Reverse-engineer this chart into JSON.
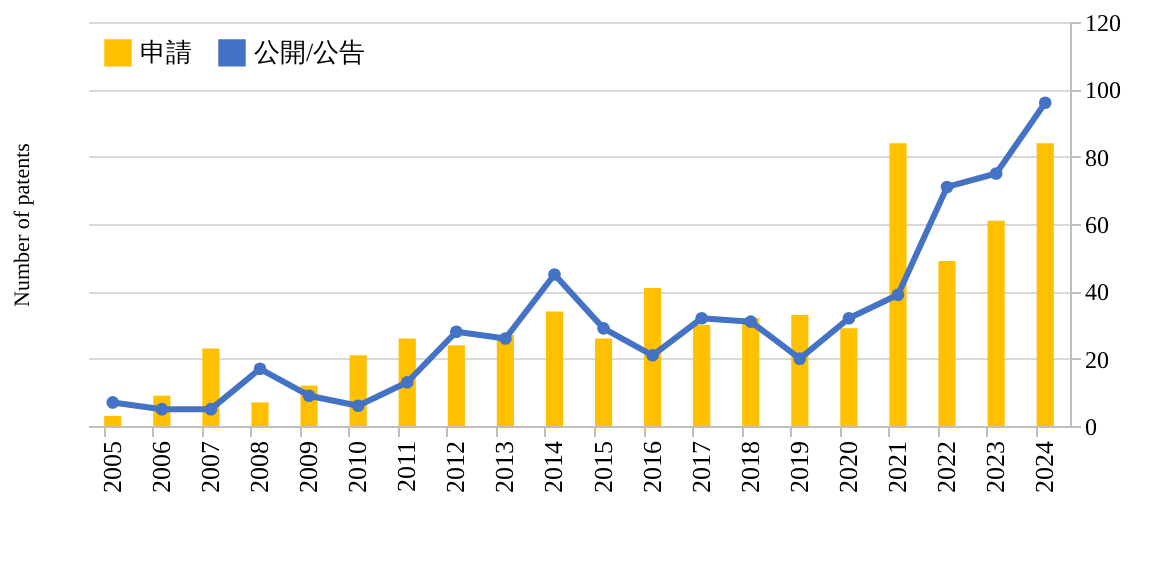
{
  "chart_data": {
    "type": "bar",
    "ylabel": "Number of patents",
    "categories": [
      "2005",
      "2006",
      "2007",
      "2008",
      "2009",
      "2010",
      "2011",
      "2012",
      "2013",
      "2014",
      "2015",
      "2016",
      "2017",
      "2018",
      "2019",
      "2020",
      "2021",
      "2022",
      "2023",
      "2024"
    ],
    "series": [
      {
        "name": "申請",
        "type": "bar",
        "color": "#ffc000",
        "values": [
          3,
          9,
          23,
          7,
          12,
          21,
          26,
          24,
          27,
          34,
          26,
          41,
          30,
          32,
          33,
          29,
          84,
          49,
          61,
          84
        ]
      },
      {
        "name": "公開/公告",
        "type": "line",
        "color": "#4472c4",
        "marker": "circle",
        "values": [
          7,
          5,
          5,
          17,
          9,
          6,
          13,
          28,
          26,
          45,
          29,
          21,
          32,
          31,
          20,
          32,
          39,
          71,
          75,
          96
        ]
      }
    ],
    "ylim": [
      0,
      120
    ],
    "yticks": [
      0,
      20,
      40,
      60,
      80,
      100,
      120
    ],
    "grid": "y",
    "legend": "top left"
  }
}
